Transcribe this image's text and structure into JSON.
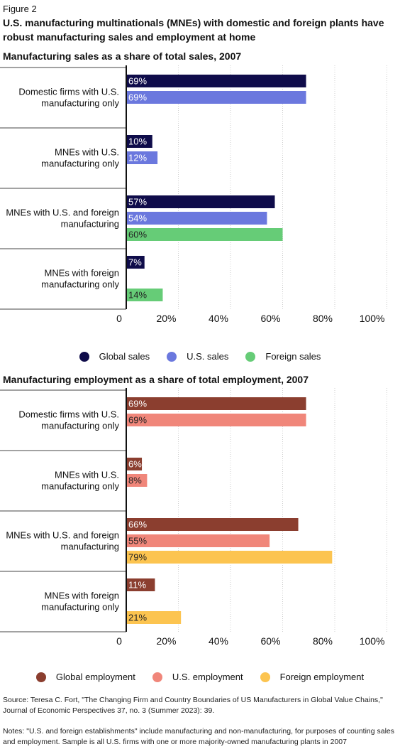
{
  "figure_label": "Figure 2",
  "title": "U.S. manufacturing multinationals (MNEs) with domestic and foreign plants have robust manufacturing sales and employment at home",
  "chart_data": [
    {
      "type": "bar",
      "orientation": "horizontal",
      "title": "Manufacturing sales as a share of total sales, 2007",
      "categories": [
        [
          "Domestic firms with U.S.",
          "manufacturing only"
        ],
        [
          "MNEs with U.S.",
          "manufacturing only"
        ],
        [
          "MNEs with U.S. and foreign",
          "manufacturing"
        ],
        [
          "MNEs with foreign",
          "manufacturing only"
        ]
      ],
      "series": [
        {
          "name": "Global sales",
          "color": "#0f0c4a",
          "values": [
            69,
            10,
            57,
            7
          ]
        },
        {
          "name": "U.S. sales",
          "color": "#6b78de",
          "values": [
            69,
            12,
            54,
            null
          ]
        },
        {
          "name": "Foreign sales",
          "color": "#66cc77",
          "values": [
            null,
            null,
            60,
            14
          ]
        }
      ],
      "value_labels": [
        [
          "69%",
          "10%",
          "57%",
          "7%"
        ],
        [
          "69%",
          "12%",
          "54%",
          ""
        ],
        [
          "",
          "",
          "60%",
          "14%"
        ]
      ],
      "xlim": [
        0,
        100
      ],
      "xticks": [
        0,
        20,
        40,
        60,
        80,
        100
      ],
      "xtick_labels": [
        "0",
        "20%",
        "40%",
        "60%",
        "80%",
        "100%"
      ],
      "grid": true,
      "legend_position": "bottom"
    },
    {
      "type": "bar",
      "orientation": "horizontal",
      "title": "Manufacturing employment as a share of total employment, 2007",
      "categories": [
        [
          "Domestic firms with U.S.",
          "manufacturing only"
        ],
        [
          "MNEs with U.S.",
          "manufacturing only"
        ],
        [
          "MNEs with U.S. and foreign",
          "manufacturing"
        ],
        [
          "MNEs with foreign",
          "manufacturing only"
        ]
      ],
      "series": [
        {
          "name": "Global employment",
          "color": "#8b3e2f",
          "values": [
            69,
            6,
            66,
            11
          ]
        },
        {
          "name": "U.S. employment",
          "color": "#f0867a",
          "values": [
            69,
            8,
            55,
            null
          ]
        },
        {
          "name": "Foreign employment",
          "color": "#fcc450",
          "values": [
            null,
            null,
            79,
            21
          ]
        }
      ],
      "value_labels": [
        [
          "69%",
          "6%",
          "66%",
          "11%"
        ],
        [
          "69%",
          "8%",
          "55%",
          ""
        ],
        [
          "",
          "",
          "79%",
          "21%"
        ]
      ],
      "xlim": [
        0,
        100
      ],
      "xticks": [
        0,
        20,
        40,
        60,
        80,
        100
      ],
      "xtick_labels": [
        "0",
        "20%",
        "40%",
        "60%",
        "80%",
        "100%"
      ],
      "grid": true,
      "legend_position": "bottom"
    }
  ],
  "footer": {
    "source": "Source: Teresa C. Fort, \"The Changing Firm and Country Boundaries of US Manufacturers in Global Value Chains,\" Journal of Economic Perspectives 37, no. 3 (Summer 2023): 39.",
    "notes": "Notes: \"U.S. and foreign establishments\" include manufacturing and non-manufacturing, for purposes of counting sales and employment. Sample is all U.S. firms with one or more majority-owned manufacturing plants in 2007"
  }
}
